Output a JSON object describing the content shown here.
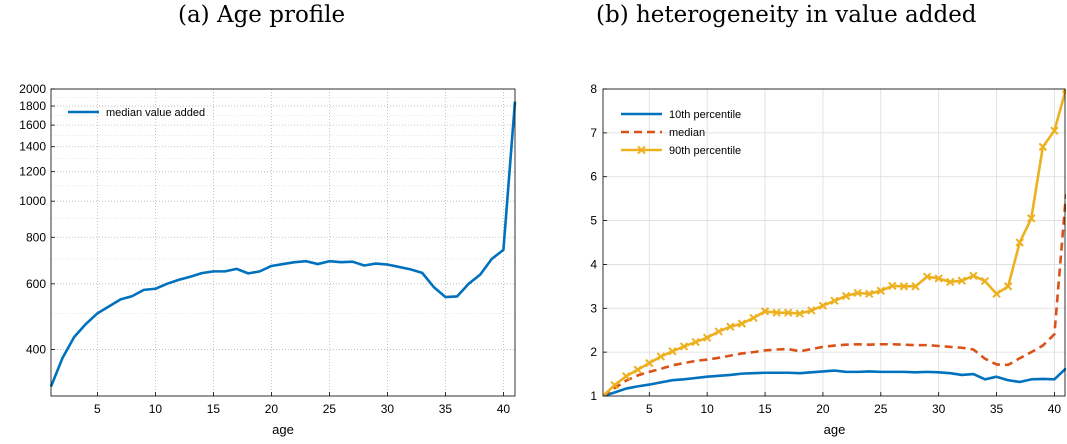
{
  "titles": {
    "a": "(a) Age profile",
    "b": "(b) heterogeneity in value added"
  },
  "chart_data": [
    {
      "type": "line",
      "title": "(a) Age profile",
      "xlabel": "age",
      "ylabel": "",
      "yscale": "log",
      "xlim": [
        1,
        41
      ],
      "ylim": [
        300,
        2000
      ],
      "xticks": [
        5,
        10,
        15,
        20,
        25,
        30,
        35,
        40
      ],
      "yticks": [
        400,
        600,
        800,
        1000,
        1200,
        1400,
        1600,
        1800,
        2000
      ],
      "grid": "major and minor, dotted",
      "legend_position": "top-left",
      "colors": {
        "median": "#0072BD"
      },
      "x": [
        1,
        2,
        3,
        4,
        5,
        6,
        7,
        8,
        9,
        10,
        11,
        12,
        13,
        14,
        15,
        16,
        17,
        18,
        19,
        20,
        21,
        22,
        23,
        24,
        25,
        26,
        27,
        28,
        29,
        30,
        31,
        32,
        33,
        34,
        35,
        36,
        37,
        38,
        39,
        40,
        41
      ],
      "series": [
        {
          "name": "median value added",
          "values": [
            318,
            380,
            432,
            468,
            500,
            522,
            545,
            556,
            578,
            582,
            600,
            615,
            627,
            641,
            648,
            648,
            658,
            640,
            648,
            670,
            678,
            686,
            690,
            678,
            690,
            686,
            688,
            672,
            680,
            676,
            666,
            656,
            642,
            588,
            553,
            555,
            600,
            635,
            700,
            740,
            1850
          ]
        }
      ]
    },
    {
      "type": "line",
      "title": "(b) heterogeneity in value added",
      "xlabel": "age",
      "ylabel": "",
      "xlim": [
        1,
        41
      ],
      "ylim": [
        1,
        8
      ],
      "xticks": [
        5,
        10,
        15,
        20,
        25,
        30,
        35,
        40
      ],
      "yticks": [
        1,
        2,
        3,
        4,
        5,
        6,
        7,
        8
      ],
      "grid": true,
      "legend_position": "top-left",
      "x": [
        1,
        2,
        3,
        4,
        5,
        6,
        7,
        8,
        9,
        10,
        11,
        12,
        13,
        14,
        15,
        16,
        17,
        18,
        19,
        20,
        21,
        22,
        23,
        24,
        25,
        26,
        27,
        28,
        29,
        30,
        31,
        32,
        33,
        34,
        35,
        36,
        37,
        38,
        39,
        40,
        41
      ],
      "series": [
        {
          "name": "10th percentile",
          "color": "#0072BD",
          "style": "solid",
          "values": [
            1.0,
            1.08,
            1.17,
            1.22,
            1.26,
            1.31,
            1.36,
            1.38,
            1.41,
            1.44,
            1.46,
            1.48,
            1.51,
            1.52,
            1.53,
            1.53,
            1.53,
            1.52,
            1.54,
            1.56,
            1.58,
            1.55,
            1.55,
            1.56,
            1.55,
            1.55,
            1.55,
            1.54,
            1.55,
            1.54,
            1.52,
            1.48,
            1.5,
            1.38,
            1.44,
            1.36,
            1.32,
            1.38,
            1.39,
            1.38,
            1.63
          ]
        },
        {
          "name": "median",
          "color": "#D95319",
          "style": "dashed",
          "values": [
            1.0,
            1.18,
            1.35,
            1.47,
            1.55,
            1.62,
            1.7,
            1.75,
            1.8,
            1.83,
            1.87,
            1.92,
            1.97,
            2.0,
            2.04,
            2.06,
            2.07,
            2.02,
            2.07,
            2.12,
            2.15,
            2.17,
            2.18,
            2.17,
            2.18,
            2.18,
            2.17,
            2.16,
            2.16,
            2.14,
            2.12,
            2.1,
            2.06,
            1.85,
            1.72,
            1.71,
            1.86,
            2.0,
            2.15,
            2.41,
            5.6
          ]
        },
        {
          "name": "90th percentile",
          "color": "#EDB120",
          "style": "solid",
          "marker": "x",
          "values": [
            1.0,
            1.25,
            1.45,
            1.6,
            1.75,
            1.9,
            2.02,
            2.13,
            2.23,
            2.33,
            2.47,
            2.58,
            2.65,
            2.78,
            2.93,
            2.9,
            2.9,
            2.88,
            2.95,
            3.06,
            3.17,
            3.28,
            3.35,
            3.33,
            3.4,
            3.51,
            3.5,
            3.5,
            3.72,
            3.68,
            3.6,
            3.63,
            3.74,
            3.62,
            3.33,
            3.5,
            4.5,
            5.05,
            6.68,
            7.05,
            8.0
          ]
        }
      ]
    }
  ]
}
